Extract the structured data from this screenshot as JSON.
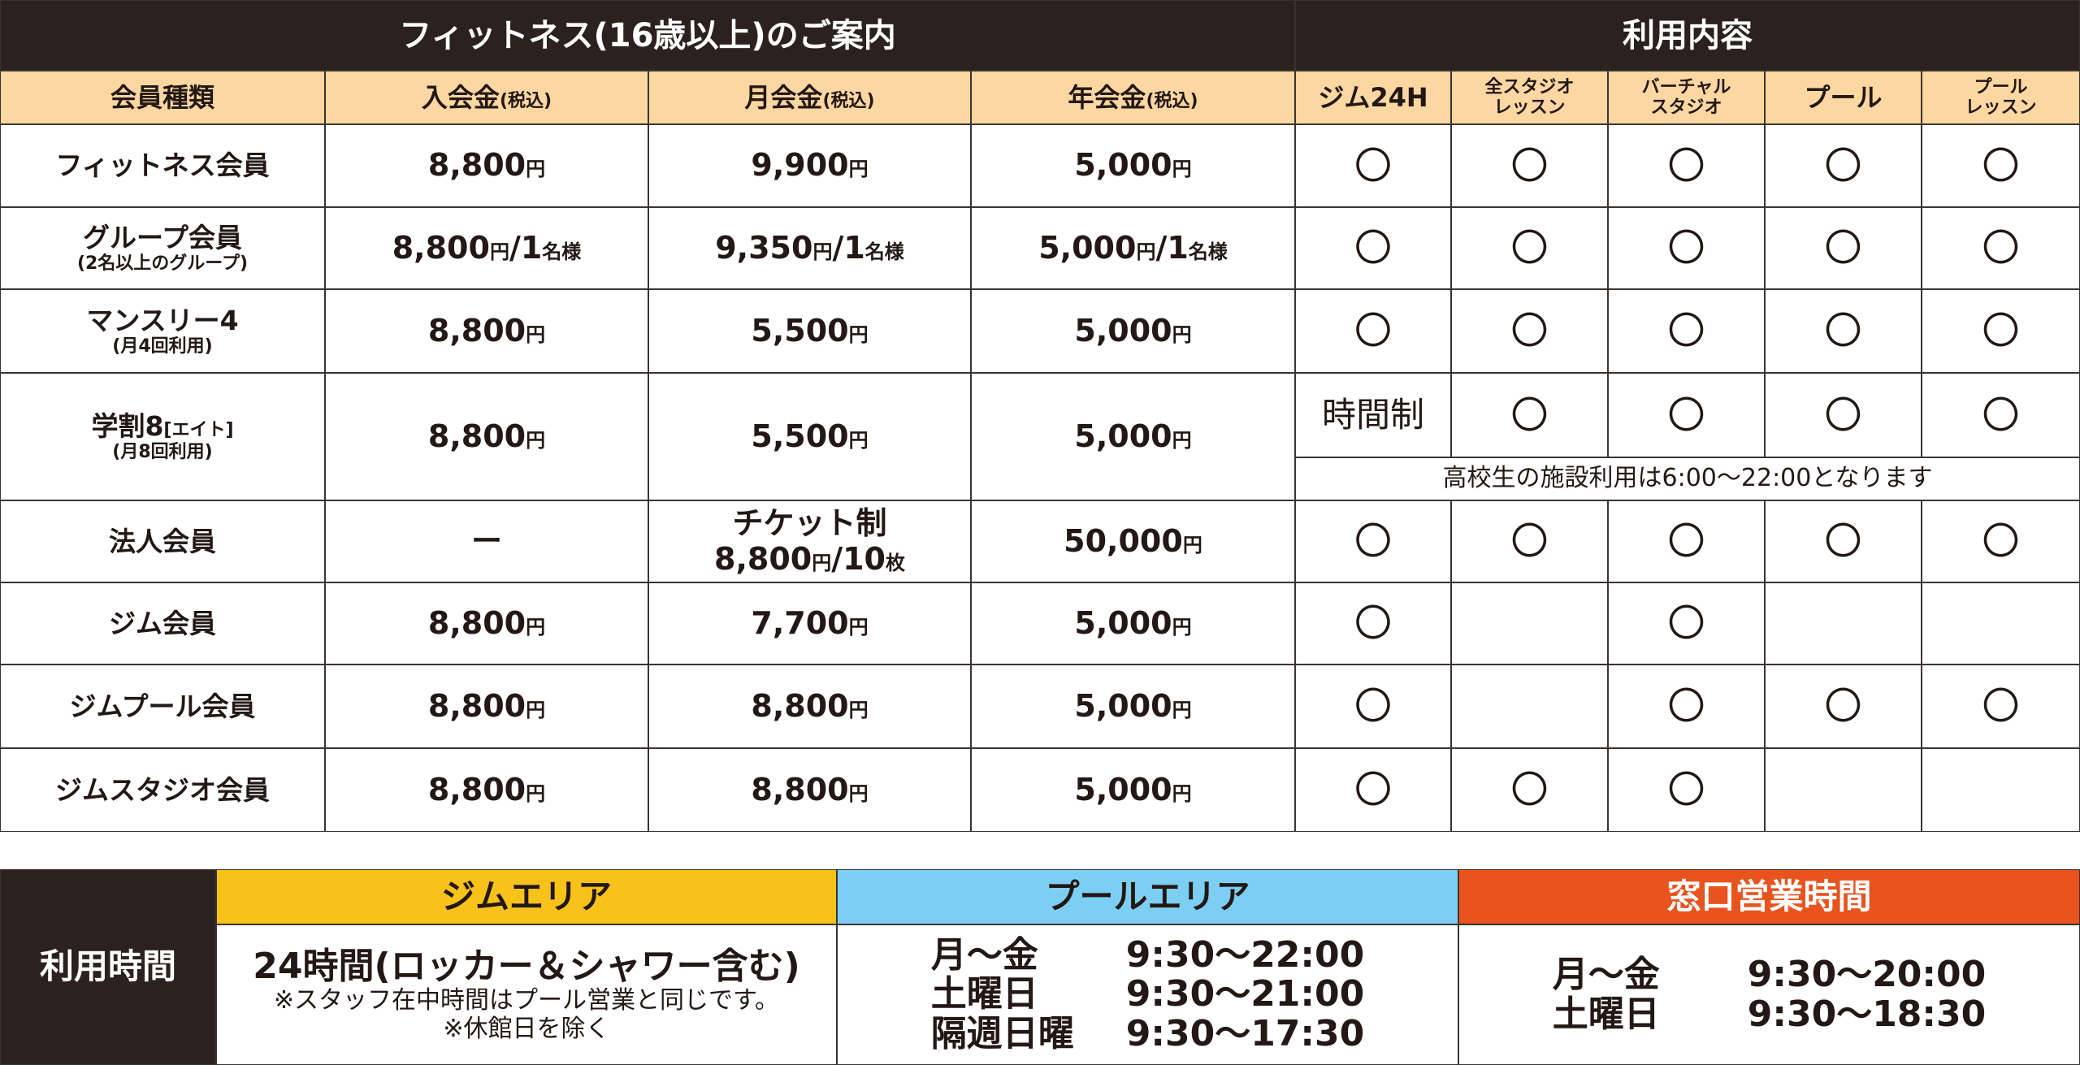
{
  "header": {
    "title": "フィットネス(16歳以上)のご案内",
    "services_title": "利用内容"
  },
  "columns": [
    {
      "text": "会員種類"
    },
    {
      "text": "入会金",
      "note": "(税込)"
    },
    {
      "text": "月会金",
      "note": "(税込)"
    },
    {
      "text": "年会金",
      "note": "(税込)"
    }
  ],
  "service_columns": [
    [
      "ジム24H"
    ],
    [
      "全スタジオ",
      "レッスン"
    ],
    [
      "バーチャル",
      "スタジオ"
    ],
    [
      "プール"
    ],
    [
      "プール",
      "レッスン"
    ]
  ],
  "rows": [
    {
      "name": [
        "フィットネス会員"
      ],
      "fees": [
        [
          [
            "8,800",
            "円"
          ]
        ],
        [
          [
            "9,900",
            "円"
          ]
        ],
        [
          [
            "5,000",
            "円"
          ]
        ]
      ],
      "services": [
        "〇",
        "〇",
        "〇",
        "〇",
        "〇"
      ]
    },
    {
      "name": [
        "グループ会員"
      ],
      "sub": "(2名以上のグループ)",
      "fees": [
        [
          [
            "8,800",
            "円",
            "/1",
            "名様"
          ]
        ],
        [
          [
            "9,350",
            "円",
            "/1",
            "名様"
          ]
        ],
        [
          [
            "5,000",
            "円",
            "/1",
            "名様"
          ]
        ]
      ],
      "services": [
        "〇",
        "〇",
        "〇",
        "〇",
        "〇"
      ]
    },
    {
      "name": [
        "マンスリー4"
      ],
      "sub": "(月4回利用)",
      "fees": [
        [
          [
            "8,800",
            "円"
          ]
        ],
        [
          [
            "5,500",
            "円"
          ]
        ],
        [
          [
            "5,000",
            "円"
          ]
        ]
      ],
      "services": [
        "〇",
        "〇",
        "〇",
        "〇",
        "〇"
      ]
    },
    {
      "name": [
        "学割8",
        "[エイト]"
      ],
      "sub": "(月8回利用)",
      "fees": [
        [
          [
            "8,800",
            "円"
          ]
        ],
        [
          [
            "5,500",
            "円"
          ]
        ],
        [
          [
            "5,000",
            "円"
          ]
        ]
      ],
      "services": [
        "時間制",
        "〇",
        "〇",
        "〇",
        "〇"
      ],
      "note": "高校生の施設利用は6:00〜22:00となります"
    },
    {
      "name": [
        "法人会員"
      ],
      "fees": [
        [
          [
            "ー"
          ]
        ],
        [
          [
            "チケット制"
          ],
          [
            "8,800",
            "円",
            "/10",
            "枚"
          ]
        ],
        [
          [
            "50,000",
            "円"
          ]
        ]
      ],
      "services": [
        "〇",
        "〇",
        "〇",
        "〇",
        "〇"
      ]
    },
    {
      "name": [
        "ジム会員"
      ],
      "fees": [
        [
          [
            "8,800",
            "円"
          ]
        ],
        [
          [
            "7,700",
            "円"
          ]
        ],
        [
          [
            "5,000",
            "円"
          ]
        ]
      ],
      "services": [
        "〇",
        null,
        "〇",
        null,
        null
      ]
    },
    {
      "name": [
        "ジムプール会員"
      ],
      "fees": [
        [
          [
            "8,800",
            "円"
          ]
        ],
        [
          [
            "8,800",
            "円"
          ]
        ],
        [
          [
            "5,000",
            "円"
          ]
        ]
      ],
      "services": [
        "〇",
        null,
        "〇",
        "〇",
        "〇"
      ]
    },
    {
      "name": [
        "ジムスタジオ会員"
      ],
      "fees": [
        [
          [
            "8,800",
            "円"
          ]
        ],
        [
          [
            "8,800",
            "円"
          ]
        ],
        [
          [
            "5,000",
            "円"
          ]
        ]
      ],
      "services": [
        "〇",
        "〇",
        "〇",
        null,
        null
      ]
    }
  ],
  "hours": {
    "label": "利用時間",
    "gym": {
      "title": "ジムエリア",
      "lines": [
        "24時間(ロッカー＆シャワー含む)",
        "※スタッフ在中時間はプール営業と同じです。",
        "※休館日を除く"
      ]
    },
    "pool": {
      "title": "プールエリア",
      "schedule": [
        [
          "月〜金",
          "9:30〜22:00"
        ],
        [
          "土曜日",
          "9:30〜21:00"
        ],
        [
          "隔週日曜",
          "9:30〜17:30"
        ]
      ]
    },
    "window": {
      "title": "窓口営業時間",
      "schedule": [
        [
          "月〜金",
          "9:30〜20:00"
        ],
        [
          "土曜日",
          "9:30〜18:30"
        ]
      ]
    }
  }
}
